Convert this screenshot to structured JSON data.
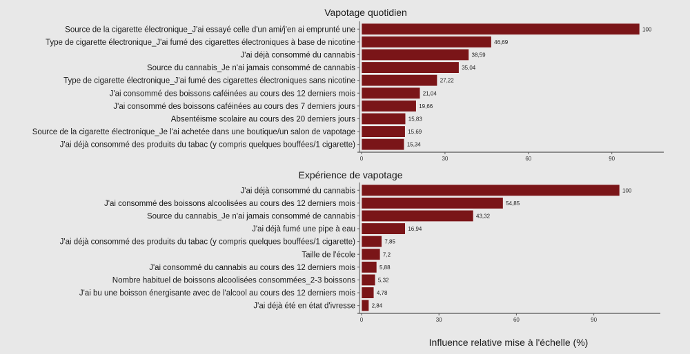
{
  "chart_data": [
    {
      "type": "bar",
      "orientation": "horizontal",
      "title": "Vapotage quotidien",
      "categories": [
        "Source de la cigarette électronique_J'ai essayé celle d'un ami/j'en ai emprunté une",
        "Type de cigarette électronique_J'ai fumé des cigarettes électroniques à base de nicotine",
        "J'ai déjà consommé du cannabis",
        "Source du cannabis_Je n'ai jamais consommé de cannabis",
        "Type de cigarette électronique_J'ai fumé des cigarettes électroniques sans nicotine",
        "J'ai consommé des boissons caféinées au cours des 12 derniers mois",
        "J'ai consommé des boissons caféinées au cours des 7 derniers jours",
        "Absentéisme scolaire au cours des 20 derniers jours",
        "Source de la cigarette électronique_Je l'ai achetée dans une boutique/un salon de vapotage",
        "J'ai déjà consommé des produits du tabac (y compris quelques bouffées/1 cigarette)"
      ],
      "values": [
        100,
        46.69,
        38.59,
        35.04,
        27.22,
        21.04,
        19.66,
        15.83,
        15.69,
        15.34
      ],
      "value_labels": [
        "100",
        "46,69",
        "38,59",
        "35,04",
        "27,22",
        "21,04",
        "19,66",
        "15,83",
        "15,69",
        "15,34"
      ],
      "xticks": [
        0,
        30,
        60,
        90
      ],
      "xlim": [
        0,
        108
      ],
      "color": "#7a1518"
    },
    {
      "type": "bar",
      "orientation": "horizontal",
      "title": "Expérience de vapotage",
      "categories": [
        "J'ai déjà consommé du cannabis",
        "J'ai consommé des boissons alcoolisées au cours des 12 derniers mois",
        "Source du cannabis_Je n'ai jamais consommé de cannabis",
        "J'ai déjà fumé une pipe à eau",
        "J'ai déjà consommé des produits du tabac (y compris quelques bouffées/1 cigarette)",
        "Taille de l'école",
        "J'ai consommé du cannabis au cours des 12 derniers mois",
        "Nombre habituel de boissons alcoolisées consommées_2-3 boissons",
        "J'ai bu une boisson énergisante avec de l'alcool au cours des 12 derniers mois",
        "J'ai déjà été en état d'ivresse"
      ],
      "values": [
        100,
        54.85,
        43.32,
        16.94,
        7.85,
        7.2,
        5.88,
        5.32,
        4.78,
        2.84
      ],
      "value_labels": [
        "100",
        "54,85",
        "43,32",
        "16,94",
        "7,85",
        "7,2",
        "5,88",
        "5,32",
        "4,78",
        "2,84"
      ],
      "xticks": [
        0,
        30,
        60,
        90
      ],
      "xlim": [
        0,
        116
      ],
      "color": "#7a1518"
    }
  ],
  "xlabel": "Influence relative mise à l'échelle (%)"
}
